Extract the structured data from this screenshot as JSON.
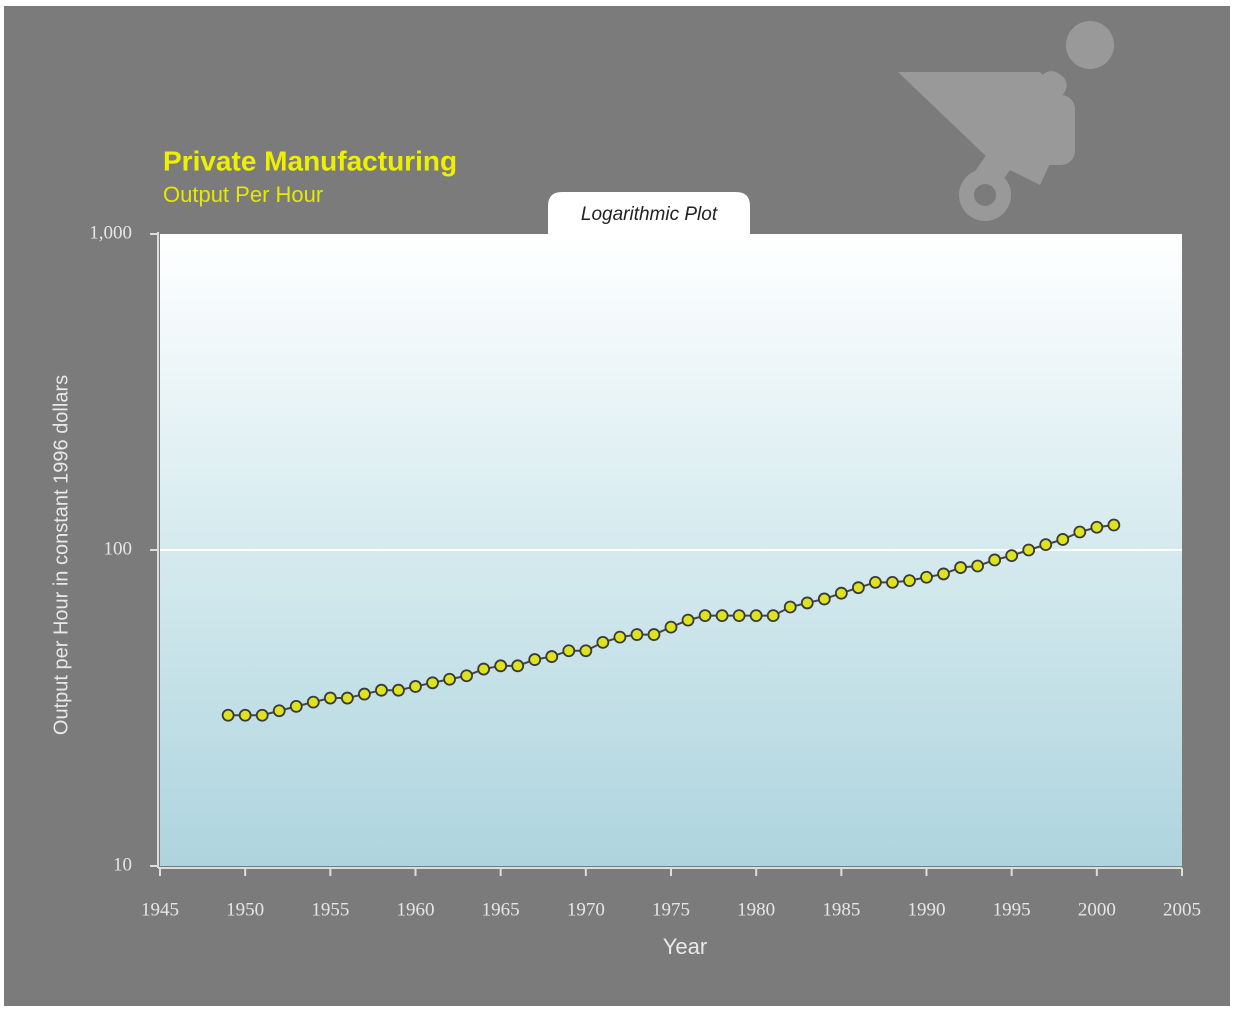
{
  "chart_data": {
    "type": "line",
    "title": "Private Manufacturing",
    "subtitle": "Output Per Hour",
    "annotation": "Logarithmic Plot",
    "x_label": "Year",
    "y_label": "Output per Hour in constant 1996 dollars",
    "log_y": true,
    "grid": true,
    "x": [
      1949,
      1950,
      1951,
      1952,
      1953,
      1954,
      1955,
      1956,
      1957,
      1958,
      1959,
      1960,
      1961,
      1962,
      1963,
      1964,
      1965,
      1966,
      1967,
      1968,
      1969,
      1970,
      1971,
      1972,
      1973,
      1974,
      1975,
      1976,
      1977,
      1978,
      1979,
      1980,
      1981,
      1982,
      1983,
      1984,
      1985,
      1986,
      1987,
      1988,
      1989,
      1990,
      1991,
      1992,
      1993,
      1994,
      1995,
      1996,
      1997,
      1998,
      1999,
      2000,
      2001
    ],
    "series": [
      {
        "name": "Output per Hour",
        "color": "#dde31f",
        "values": [
          30,
          30,
          30,
          31,
          32,
          33,
          34,
          34,
          35,
          36,
          36,
          37,
          38,
          39,
          40,
          42,
          43,
          43,
          45,
          46,
          48,
          48,
          51,
          53,
          54,
          54,
          57,
          60,
          62,
          62,
          62,
          62,
          62,
          66,
          68,
          70,
          73,
          76,
          79,
          79,
          80,
          82,
          84,
          88,
          89,
          93,
          96,
          100,
          104,
          108,
          114,
          118,
          120
        ]
      }
    ],
    "xlim": [
      1945,
      2005
    ],
    "xticks": [
      1945,
      1950,
      1955,
      1960,
      1965,
      1970,
      1975,
      1980,
      1985,
      1990,
      1995,
      2000,
      2005
    ],
    "ylim": [
      10,
      1000
    ],
    "yticks": [
      10,
      100,
      {
        "value": 1000,
        "label": "1,000"
      }
    ]
  }
}
